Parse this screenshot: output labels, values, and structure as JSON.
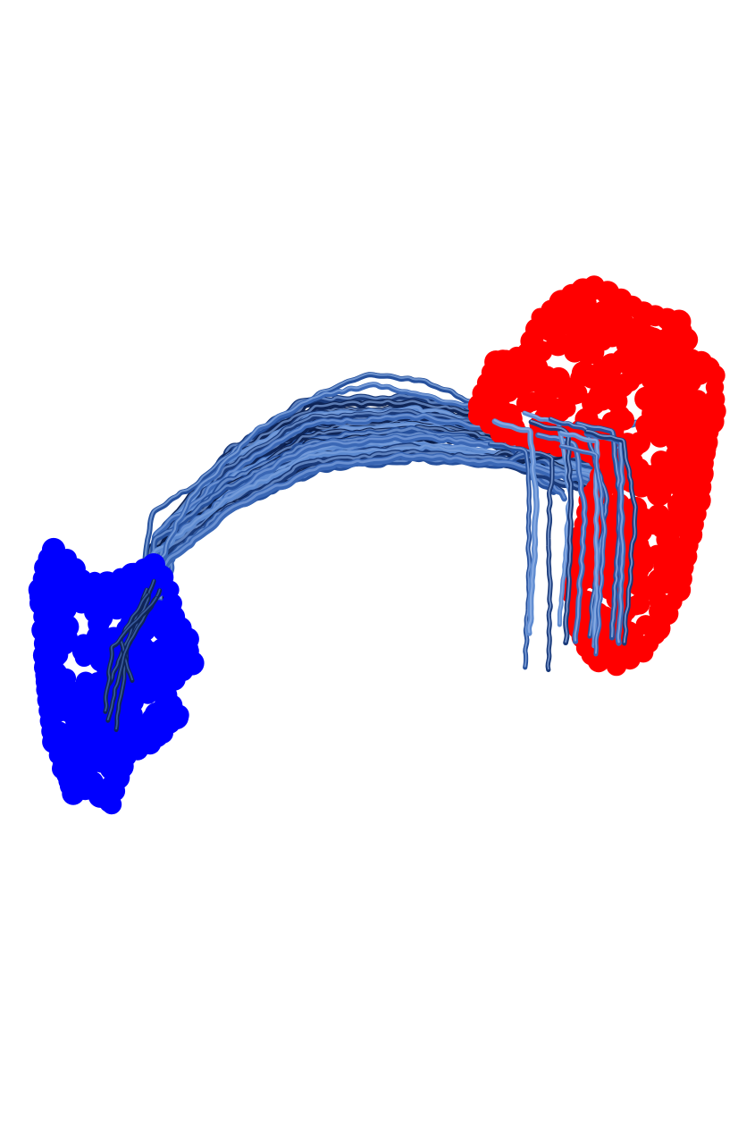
{
  "scene": {
    "background_color": "#ffffff",
    "clusters": [
      {
        "name": "blue-sphere-cluster",
        "color": "#0000ff"
      },
      {
        "name": "red-sphere-cluster",
        "color": "#ff0000"
      }
    ],
    "tract_bundle": {
      "name": "fiber-tract-bundle",
      "colors": [
        "#0f2557",
        "#1a3a7a",
        "#26509c",
        "#3a67b5",
        "#5d8ad0",
        "#0a1d49"
      ]
    }
  }
}
